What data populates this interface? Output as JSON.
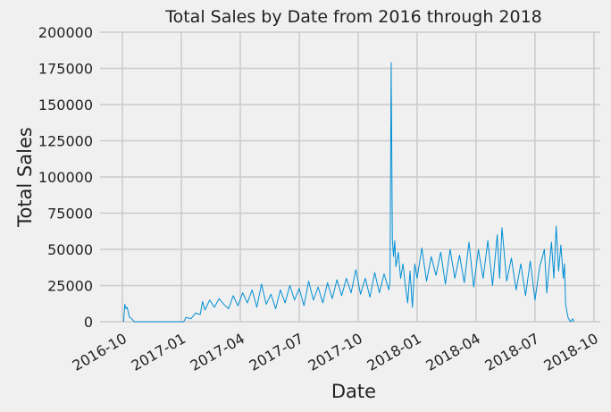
{
  "chart_data": {
    "type": "line",
    "title": "Total Sales by Date from 2016 through 2018",
    "x_label": "Date",
    "y_label": "Total Sales",
    "color": "#008fd5",
    "grid": true,
    "xlim": [
      2016.655,
      2018.777
    ],
    "ylim": [
      0,
      200000
    ],
    "xticks": [
      {
        "value": 2016.75,
        "label": "2016-10"
      },
      {
        "value": 2017.0,
        "label": "2017-01"
      },
      {
        "value": 2017.25,
        "label": "2017-04"
      },
      {
        "value": 2017.5,
        "label": "2017-07"
      },
      {
        "value": 2017.75,
        "label": "2017-10"
      },
      {
        "value": 2018.0,
        "label": "2018-01"
      },
      {
        "value": 2018.25,
        "label": "2018-04"
      },
      {
        "value": 2018.5,
        "label": "2018-07"
      },
      {
        "value": 2018.75,
        "label": "2018-10"
      }
    ],
    "yticks": [
      0,
      25000,
      50000,
      75000,
      100000,
      125000,
      150000,
      175000,
      200000
    ],
    "x": [
      2016.755,
      2016.76,
      2016.765,
      2016.77,
      2016.78,
      2016.79,
      2016.8,
      2016.95,
      2017.01,
      2017.02,
      2017.04,
      2017.06,
      2017.08,
      2017.09,
      2017.1,
      2017.12,
      2017.14,
      2017.16,
      2017.18,
      2017.2,
      2017.22,
      2017.24,
      2017.26,
      2017.28,
      2017.3,
      2017.32,
      2017.34,
      2017.36,
      2017.38,
      2017.4,
      2017.42,
      2017.44,
      2017.46,
      2017.48,
      2017.5,
      2017.52,
      2017.54,
      2017.56,
      2017.58,
      2017.6,
      2017.62,
      2017.64,
      2017.66,
      2017.68,
      2017.7,
      2017.72,
      2017.74,
      2017.76,
      2017.78,
      2017.8,
      2017.82,
      2017.84,
      2017.86,
      2017.88,
      2017.885,
      2017.89,
      2017.895,
      2017.9,
      2017.905,
      2017.91,
      2017.92,
      2017.93,
      2017.94,
      2017.95,
      2017.96,
      2017.97,
      2017.98,
      2017.99,
      2018.0,
      2018.02,
      2018.04,
      2018.06,
      2018.08,
      2018.1,
      2018.12,
      2018.14,
      2018.16,
      2018.18,
      2018.2,
      2018.22,
      2018.24,
      2018.26,
      2018.28,
      2018.3,
      2018.32,
      2018.34,
      2018.35,
      2018.36,
      2018.38,
      2018.4,
      2018.42,
      2018.44,
      2018.46,
      2018.48,
      2018.5,
      2018.52,
      2018.54,
      2018.55,
      2018.57,
      2018.58,
      2018.59,
      2018.6,
      2018.61,
      2018.62,
      2018.625,
      2018.63,
      2018.64,
      2018.65,
      2018.66,
      2018.665
    ],
    "values": [
      0,
      12000,
      9000,
      10000,
      3000,
      2000,
      0,
      0,
      0,
      3000,
      2000,
      6000,
      5000,
      14000,
      8000,
      15000,
      10000,
      16000,
      12000,
      9000,
      18000,
      11000,
      20000,
      13000,
      22000,
      10000,
      26000,
      12000,
      19000,
      9000,
      22000,
      13000,
      25000,
      15000,
      23000,
      11000,
      28000,
      15000,
      24000,
      13000,
      27000,
      16000,
      29000,
      18000,
      30000,
      20000,
      36000,
      19000,
      30000,
      17000,
      34000,
      20000,
      33000,
      22000,
      28000,
      179000,
      57000,
      45000,
      56000,
      38000,
      48000,
      30000,
      40000,
      25000,
      13000,
      35000,
      10000,
      40000,
      30000,
      51000,
      28000,
      45000,
      32000,
      48000,
      26000,
      50000,
      30000,
      46000,
      27000,
      55000,
      24000,
      50000,
      30000,
      56000,
      25000,
      60000,
      30000,
      65000,
      28000,
      44000,
      22000,
      40000,
      18000,
      42000,
      15000,
      38000,
      50000,
      20000,
      55000,
      30000,
      66000,
      35000,
      53000,
      30000,
      40000,
      12000,
      3000,
      0,
      2000,
      0
    ]
  }
}
